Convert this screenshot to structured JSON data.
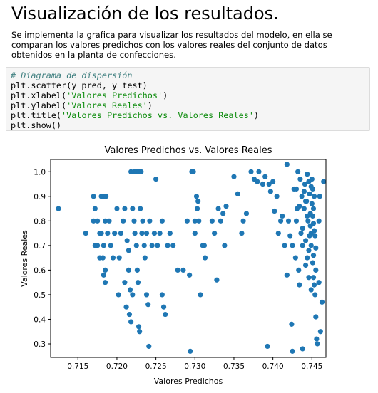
{
  "heading": "Visualización de los resultados.",
  "paragraph": "Se implementa la grafica para visualizar los resultados del modelo, en ella se comparan los valores predichos con los valores reales del conjunto de datos obtenidos en la planta de confecciones.",
  "code": {
    "comment": "# Diagrama de dispersión",
    "line1": "plt.scatter(y_pred, y_test)",
    "line2_pre": "plt.xlabel(",
    "line2_str": "'Valores Predichos'",
    "line2_post": ")",
    "line3_pre": "plt.ylabel(",
    "line3_str": "'Valores Reales'",
    "line3_post": ")",
    "line4_pre": "plt.title(",
    "line4_str": "'Valores Predichos vs. Valores Reales'",
    "line4_post": ")",
    "line5": "plt.show()"
  },
  "colors": {
    "marker": "#1f77b4",
    "comment": "#408080",
    "string": "#0a8a0a"
  },
  "chart_data": {
    "type": "scatter",
    "title": "Valores Predichos vs. Valores Reales",
    "xlabel": "Valores Predichos",
    "ylabel": "Valores Reales",
    "xlim": [
      0.7115,
      0.7468
    ],
    "ylim": [
      0.245,
      1.05
    ],
    "xticks": [
      0.715,
      0.72,
      0.725,
      0.73,
      0.735,
      0.74,
      0.745
    ],
    "xtick_labels": [
      "0.715",
      "0.720",
      "0.725",
      "0.730",
      "0.735",
      "0.740",
      "0.745"
    ],
    "yticks": [
      0.3,
      0.4,
      0.5,
      0.6,
      0.7,
      0.8,
      0.9,
      1.0
    ],
    "ytick_labels": [
      "0.3",
      "0.4",
      "0.5",
      "0.6",
      "0.7",
      "0.8",
      "0.9",
      "1.0"
    ],
    "grid": false,
    "points": [
      [
        0.7125,
        0.85
      ],
      [
        0.716,
        0.75
      ],
      [
        0.717,
        0.9
      ],
      [
        0.7172,
        0.85
      ],
      [
        0.717,
        0.8
      ],
      [
        0.7175,
        0.8
      ],
      [
        0.7178,
        0.75
      ],
      [
        0.7172,
        0.7
      ],
      [
        0.7175,
        0.7
      ],
      [
        0.718,
        0.75
      ],
      [
        0.7183,
        0.7
      ],
      [
        0.7185,
        0.8
      ],
      [
        0.7178,
        0.65
      ],
      [
        0.7182,
        0.65
      ],
      [
        0.7185,
        0.6
      ],
      [
        0.7183,
        0.58
      ],
      [
        0.7185,
        0.55
      ],
      [
        0.718,
        0.9
      ],
      [
        0.7183,
        0.9
      ],
      [
        0.7186,
        0.9
      ],
      [
        0.7188,
        0.75
      ],
      [
        0.719,
        0.8
      ],
      [
        0.7192,
        0.7
      ],
      [
        0.7195,
        0.65
      ],
      [
        0.7197,
        0.75
      ],
      [
        0.72,
        0.85
      ],
      [
        0.7203,
        0.65
      ],
      [
        0.7202,
        0.5
      ],
      [
        0.7205,
        0.75
      ],
      [
        0.7208,
        0.8
      ],
      [
        0.721,
        0.85
      ],
      [
        0.721,
        0.55
      ],
      [
        0.7212,
        0.45
      ],
      [
        0.7213,
        0.72
      ],
      [
        0.7215,
        0.68
      ],
      [
        0.7215,
        0.6
      ],
      [
        0.7217,
        0.52
      ],
      [
        0.7216,
        0.42
      ],
      [
        0.7218,
        0.39
      ],
      [
        0.722,
        0.5
      ],
      [
        0.722,
        0.85
      ],
      [
        0.7222,
        0.8
      ],
      [
        0.7223,
        0.75
      ],
      [
        0.7225,
        0.7
      ],
      [
        0.7226,
        0.6
      ],
      [
        0.7227,
        0.55
      ],
      [
        0.7228,
        0.37
      ],
      [
        0.7229,
        0.35
      ],
      [
        0.7218,
        1.0
      ],
      [
        0.7222,
        1.0
      ],
      [
        0.7225,
        1.0
      ],
      [
        0.7228,
        1.0
      ],
      [
        0.7231,
        1.0
      ],
      [
        0.7233,
        0.8
      ],
      [
        0.723,
        0.85
      ],
      [
        0.7232,
        0.75
      ],
      [
        0.7235,
        0.7
      ],
      [
        0.7236,
        0.65
      ],
      [
        0.7238,
        0.5
      ],
      [
        0.724,
        0.46
      ],
      [
        0.7241,
        0.29
      ],
      [
        0.7238,
        0.75
      ],
      [
        0.7242,
        0.8
      ],
      [
        0.7245,
        0.7
      ],
      [
        0.7248,
        0.75
      ],
      [
        0.725,
        0.97
      ],
      [
        0.7252,
        0.7
      ],
      [
        0.7255,
        0.75
      ],
      [
        0.7258,
        0.8
      ],
      [
        0.7258,
        0.5
      ],
      [
        0.726,
        0.45
      ],
      [
        0.7262,
        0.42
      ],
      [
        0.7265,
        0.7
      ],
      [
        0.7268,
        0.75
      ],
      [
        0.7272,
        0.7
      ],
      [
        0.7278,
        0.6
      ],
      [
        0.7285,
        0.6
      ],
      [
        0.729,
        0.8
      ],
      [
        0.7293,
        0.58
      ],
      [
        0.7294,
        0.27
      ],
      [
        0.7296,
        1.0
      ],
      [
        0.7298,
        1.0
      ],
      [
        0.73,
        0.8
      ],
      [
        0.7302,
        0.9
      ],
      [
        0.7304,
        0.88
      ],
      [
        0.73,
        0.75
      ],
      [
        0.7303,
        0.85
      ],
      [
        0.7305,
        0.8
      ],
      [
        0.7307,
        0.5
      ],
      [
        0.731,
        0.7
      ],
      [
        0.7312,
        0.7
      ],
      [
        0.7313,
        0.65
      ],
      [
        0.7322,
        0.8
      ],
      [
        0.7325,
        0.75
      ],
      [
        0.7328,
        0.56
      ],
      [
        0.733,
        0.85
      ],
      [
        0.7333,
        0.8
      ],
      [
        0.7336,
        0.83
      ],
      [
        0.7338,
        0.7
      ],
      [
        0.734,
        0.86
      ],
      [
        0.735,
        0.98
      ],
      [
        0.7355,
        0.91
      ],
      [
        0.736,
        0.75
      ],
      [
        0.7362,
        0.8
      ],
      [
        0.7366,
        0.83
      ],
      [
        0.7372,
        1.0
      ],
      [
        0.7376,
        0.97
      ],
      [
        0.738,
        0.96
      ],
      [
        0.7382,
        1.0
      ],
      [
        0.7387,
        0.95
      ],
      [
        0.739,
        0.98
      ],
      [
        0.7393,
        0.29
      ],
      [
        0.7395,
        0.95
      ],
      [
        0.7397,
        0.92
      ],
      [
        0.74,
        0.96
      ],
      [
        0.7402,
        0.84
      ],
      [
        0.7405,
        0.9
      ],
      [
        0.7407,
        0.75
      ],
      [
        0.741,
        0.8
      ],
      [
        0.7412,
        0.82
      ],
      [
        0.7415,
        0.7
      ],
      [
        0.7418,
        1.03
      ],
      [
        0.7418,
        0.58
      ],
      [
        0.742,
        0.8
      ],
      [
        0.7422,
        0.74
      ],
      [
        0.7424,
        0.38
      ],
      [
        0.7425,
        0.7
      ],
      [
        0.7425,
        0.27
      ],
      [
        0.7427,
        0.93
      ],
      [
        0.7429,
        0.65
      ],
      [
        0.743,
        0.8
      ],
      [
        0.7431,
        0.85
      ],
      [
        0.7432,
        1.0
      ],
      [
        0.7433,
        0.6
      ],
      [
        0.7434,
        0.54
      ],
      [
        0.7435,
        0.97
      ],
      [
        0.7436,
        0.75
      ],
      [
        0.7437,
        0.9
      ],
      [
        0.7438,
        0.7
      ],
      [
        0.7438,
        0.28
      ],
      [
        0.744,
        0.85
      ],
      [
        0.744,
        0.92
      ],
      [
        0.7441,
        0.95
      ],
      [
        0.7442,
        0.72
      ],
      [
        0.7442,
        0.62
      ],
      [
        0.7443,
        0.88
      ],
      [
        0.7444,
        0.82
      ],
      [
        0.7444,
        0.65
      ],
      [
        0.7445,
        0.8
      ],
      [
        0.7446,
        0.96
      ],
      [
        0.7446,
        0.68
      ],
      [
        0.7446,
        0.57
      ],
      [
        0.7447,
        0.91
      ],
      [
        0.7448,
        0.83
      ],
      [
        0.7448,
        0.78
      ],
      [
        0.7449,
        0.75
      ],
      [
        0.7449,
        0.7
      ],
      [
        0.745,
        0.87
      ],
      [
        0.745,
        0.97
      ],
      [
        0.7451,
        0.93
      ],
      [
        0.7451,
        0.63
      ],
      [
        0.7452,
        0.85
      ],
      [
        0.7452,
        0.79
      ],
      [
        0.7452,
        0.66
      ],
      [
        0.7453,
        0.9
      ],
      [
        0.7453,
        0.54
      ],
      [
        0.7454,
        0.74
      ],
      [
        0.7454,
        0.5
      ],
      [
        0.7455,
        0.6
      ],
      [
        0.7455,
        0.41
      ],
      [
        0.7456,
        0.32
      ],
      [
        0.7457,
        0.3
      ],
      [
        0.7459,
        0.8
      ],
      [
        0.7459,
        0.55
      ],
      [
        0.746,
        0.9
      ],
      [
        0.7461,
        0.35
      ],
      [
        0.7463,
        0.47
      ],
      [
        0.7465,
        0.96
      ],
      [
        0.743,
        0.93
      ],
      [
        0.7434,
        0.86
      ],
      [
        0.7438,
        0.77
      ],
      [
        0.7442,
        0.88
      ],
      [
        0.7444,
        0.99
      ],
      [
        0.7447,
        0.74
      ],
      [
        0.7449,
        0.94
      ],
      [
        0.7451,
        0.82
      ],
      [
        0.7453,
        0.76
      ],
      [
        0.7455,
        0.69
      ],
      [
        0.7449,
        0.52
      ],
      [
        0.7452,
        0.57
      ]
    ]
  }
}
